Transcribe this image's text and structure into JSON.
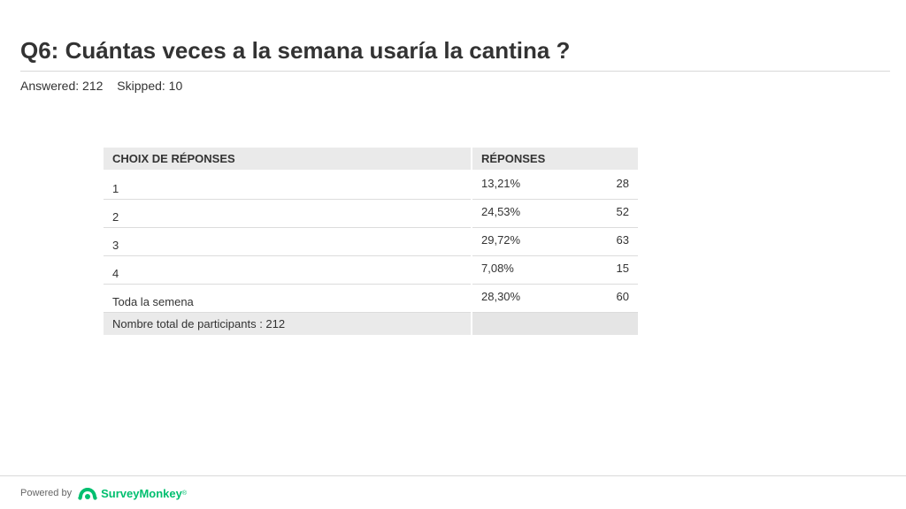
{
  "question": {
    "title": "Q6: Cuántas veces a la semana usaría la cantina ?",
    "answered": "Answered: 212",
    "skipped": "Skipped: 10"
  },
  "table": {
    "headers": {
      "choice": "CHOIX DE RÉPONSES",
      "responses": "RÉPONSES"
    },
    "rows": [
      {
        "choice": "1",
        "percent": "13,21%",
        "count": "28"
      },
      {
        "choice": "2",
        "percent": "24,53%",
        "count": "52"
      },
      {
        "choice": "3",
        "percent": "29,72%",
        "count": "63"
      },
      {
        "choice": "4",
        "percent": "7,08%",
        "count": "15"
      },
      {
        "choice": "Toda la semena",
        "percent": "28,30%",
        "count": "60"
      }
    ],
    "total": "Nombre total de participants : 212"
  },
  "footer": {
    "powered_by": "Powered by",
    "brand": "SurveyMonkey",
    "brand_mark": "®",
    "brand_color": "#00bf6f"
  }
}
